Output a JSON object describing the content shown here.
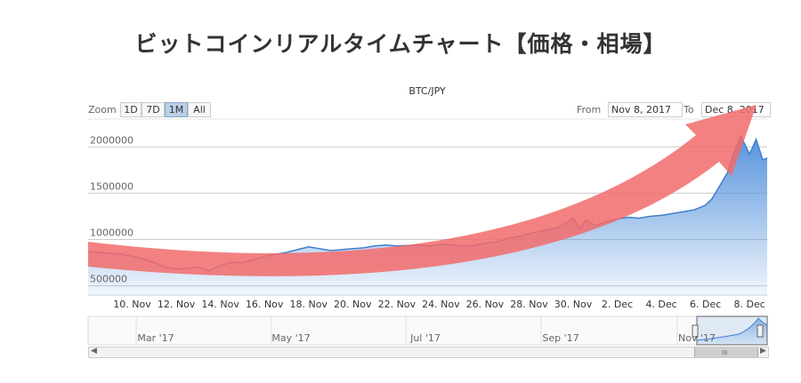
{
  "page": {
    "title": "ビットコインリアルタイムチャート【価格・相場】"
  },
  "toolbar": {
    "zoom_label": "Zoom",
    "zoom_buttons": [
      "1D",
      "7D",
      "1M",
      "All"
    ],
    "active_zoom": "1M",
    "from_label": "From",
    "from_value": "Nov 8, 2017",
    "to_label": "To",
    "to_value": "Dec 8, 2017"
  },
  "navigator": {
    "labels": [
      "Mar '17",
      "May '17",
      "Jul '17",
      "Sep '17",
      "Nov '17"
    ],
    "scroll_grip": "III"
  },
  "colors": {
    "series_line": "#3f7fcc",
    "series_fill_top": "#4d8ddb",
    "arrow": "#f26b6b",
    "grid": "#cccccc"
  },
  "chart_data": {
    "type": "area",
    "title": "BTC/JPY",
    "xlabel": "",
    "ylabel": "",
    "ylim": [
      400000,
      2300000
    ],
    "yticks": [
      500000,
      1000000,
      1500000,
      2000000
    ],
    "ytick_labels": [
      "500000",
      "1000000",
      "1500000",
      "2000000"
    ],
    "xticks": [
      "10. Nov",
      "12. Nov",
      "14. Nov",
      "16. Nov",
      "18. Nov",
      "20. Nov",
      "22. Nov",
      "24. Nov",
      "26. Nov",
      "28. Nov",
      "30. Nov",
      "2. Dec",
      "4. Dec",
      "6. Dec",
      "8. Dec"
    ],
    "grid": true,
    "x": [
      8.0,
      8.5,
      9.0,
      9.5,
      10.0,
      10.5,
      11.0,
      11.5,
      12.0,
      12.5,
      13.0,
      13.5,
      14.0,
      14.5,
      15.0,
      15.5,
      16.0,
      16.5,
      17.0,
      17.5,
      18.0,
      18.5,
      19.0,
      19.5,
      20.0,
      20.5,
      21.0,
      21.5,
      22.0,
      22.5,
      23.0,
      23.5,
      24.0,
      24.5,
      25.0,
      25.5,
      26.0,
      26.5,
      27.0,
      27.5,
      28.0,
      28.5,
      29.0,
      29.3,
      29.6,
      30.0,
      30.3,
      30.6,
      31.0,
      31.5,
      32.0,
      32.5,
      33.0,
      33.5,
      34.0,
      34.5,
      35.0,
      35.5,
      36.0,
      36.3,
      36.6,
      37.0,
      37.3,
      37.6,
      38.0,
      38.3,
      38.6,
      38.8
    ],
    "values": [
      870000,
      860000,
      850000,
      840000,
      820000,
      790000,
      750000,
      700000,
      680000,
      690000,
      700000,
      660000,
      720000,
      750000,
      750000,
      780000,
      820000,
      840000,
      860000,
      890000,
      920000,
      900000,
      880000,
      890000,
      900000,
      910000,
      930000,
      940000,
      930000,
      935000,
      940000,
      930000,
      950000,
      940000,
      930000,
      935000,
      960000,
      970000,
      1010000,
      1030000,
      1060000,
      1090000,
      1110000,
      1130000,
      1170000,
      1230000,
      1120000,
      1210000,
      1150000,
      1190000,
      1220000,
      1240000,
      1230000,
      1250000,
      1260000,
      1280000,
      1300000,
      1320000,
      1370000,
      1440000,
      1560000,
      1720000,
      1950000,
      2120000,
      1920000,
      2080000,
      1860000,
      1880000
    ]
  }
}
